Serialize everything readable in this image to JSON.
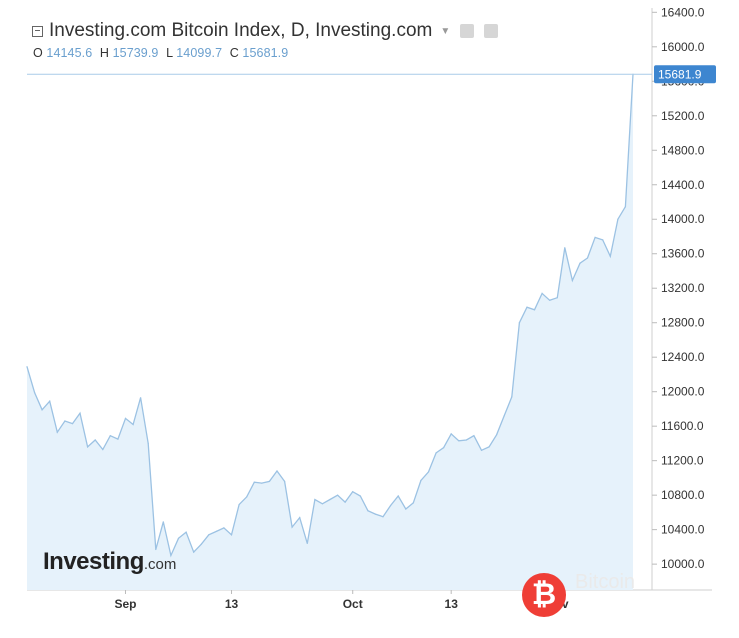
{
  "header": {
    "title": "Investing.com Bitcoin Index, D, Investing.com",
    "ohlc": [
      {
        "key": "O",
        "value": "14145.6"
      },
      {
        "key": "H",
        "value": "15739.9"
      },
      {
        "key": "L",
        "value": "14099.7"
      },
      {
        "key": "C",
        "value": "15681.9"
      }
    ]
  },
  "watermark": {
    "brand": "Investing",
    "brand_suffix": ".com",
    "coin_symbol": "₿",
    "coin_text": "Bitcoin"
  },
  "chart_data": {
    "type": "area",
    "title": "Investing.com Bitcoin Index, D, Investing.com",
    "xlabel": "",
    "ylabel": "",
    "ylim": [
      9700,
      16450
    ],
    "y_ticks": [
      10000,
      10400,
      10800,
      11200,
      11600,
      12000,
      12400,
      12800,
      13200,
      13600,
      14000,
      14400,
      14800,
      15200,
      15600,
      16000,
      16400
    ],
    "y_tick_labels": [
      "10000.0",
      "10400.0",
      "10800.0",
      "11200.0",
      "11600.0",
      "12000.0",
      "12400.0",
      "12800.0",
      "13200.0",
      "13600.0",
      "14000.0",
      "14400.0",
      "14800.0",
      "15200.0",
      "15600.0",
      "16000.0",
      "16400.0"
    ],
    "x_tick_labels": [
      "Sep",
      "13",
      "Oct",
      "13",
      "Nov"
    ],
    "x_tick_index": [
      13,
      27,
      43,
      56,
      70
    ],
    "last_value": 15681.9,
    "last_value_label": "15681.9",
    "grid": false,
    "series": [
      {
        "values": [
          12290,
          11990,
          11790,
          11890,
          11530,
          11660,
          11630,
          11750,
          11360,
          11440,
          11330,
          11490,
          11450,
          11690,
          11620,
          11930,
          11400,
          10170,
          10490,
          10100,
          10300,
          10370,
          10140,
          10230,
          10340,
          10380,
          10420,
          10340,
          10690,
          10780,
          10950,
          10940,
          10960,
          11080,
          10960,
          10430,
          10540,
          10240,
          10750,
          10700,
          10750,
          10800,
          10720,
          10840,
          10790,
          10620,
          10580,
          10550,
          10680,
          10790,
          10640,
          10710,
          10970,
          11070,
          11290,
          11350,
          11510,
          11430,
          11440,
          11490,
          11320,
          11360,
          11500,
          11720,
          11940,
          12800,
          12980,
          12950,
          13140,
          13060,
          13090,
          13670,
          13290,
          13490,
          13550,
          13790,
          13760,
          13570,
          14000,
          14145.6,
          15681.9
        ]
      }
    ]
  }
}
